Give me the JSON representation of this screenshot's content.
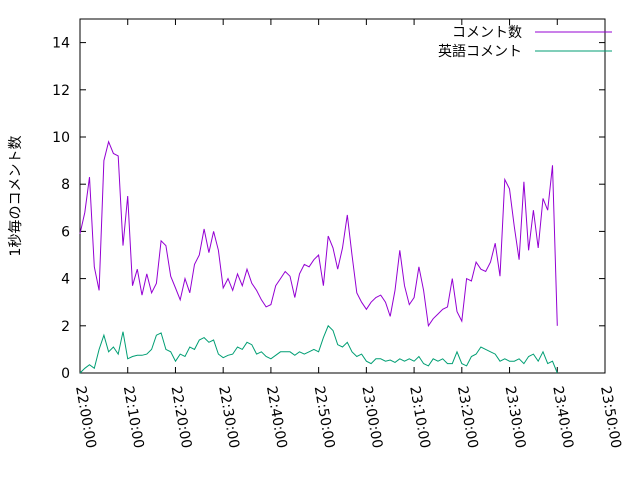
{
  "chart_data": {
    "type": "line",
    "ylabel": "1秒毎のコメント数",
    "x": [
      "22:00:00",
      "22:01:00",
      "22:02:00",
      "22:03:00",
      "22:04:00",
      "22:05:00",
      "22:06:00",
      "22:07:00",
      "22:08:00",
      "22:09:00",
      "22:10:00",
      "22:11:00",
      "22:12:00",
      "22:13:00",
      "22:14:00",
      "22:15:00",
      "22:16:00",
      "22:17:00",
      "22:18:00",
      "22:19:00",
      "22:20:00",
      "22:21:00",
      "22:22:00",
      "22:23:00",
      "22:24:00",
      "22:25:00",
      "22:26:00",
      "22:27:00",
      "22:28:00",
      "22:29:00",
      "22:30:00",
      "22:31:00",
      "22:32:00",
      "22:33:00",
      "22:34:00",
      "22:35:00",
      "22:36:00",
      "22:37:00",
      "22:38:00",
      "22:39:00",
      "22:40:00",
      "22:41:00",
      "22:42:00",
      "22:43:00",
      "22:44:00",
      "22:45:00",
      "22:46:00",
      "22:47:00",
      "22:48:00",
      "22:49:00",
      "22:50:00",
      "22:51:00",
      "22:52:00",
      "22:53:00",
      "22:54:00",
      "22:55:00",
      "22:56:00",
      "22:57:00",
      "22:58:00",
      "22:59:00",
      "23:00:00",
      "23:01:00",
      "23:02:00",
      "23:03:00",
      "23:04:00",
      "23:05:00",
      "23:06:00",
      "23:07:00",
      "23:08:00",
      "23:09:00",
      "23:10:00",
      "23:11:00",
      "23:12:00",
      "23:13:00",
      "23:14:00",
      "23:15:00",
      "23:16:00",
      "23:17:00",
      "23:18:00",
      "23:19:00",
      "23:20:00",
      "23:21:00",
      "23:22:00",
      "23:23:00",
      "23:24:00",
      "23:25:00",
      "23:26:00",
      "23:27:00",
      "23:28:00",
      "23:29:00",
      "23:30:00",
      "23:31:00",
      "23:32:00",
      "23:33:00",
      "23:34:00",
      "23:35:00",
      "23:36:00",
      "23:37:00",
      "23:38:00",
      "23:39:00",
      "23:40:00"
    ],
    "series": [
      {
        "name": "コメント数",
        "color": "#9400d3",
        "values": [
          5.9,
          6.8,
          8.3,
          4.5,
          3.5,
          9.0,
          9.8,
          9.3,
          9.2,
          5.4,
          7.5,
          3.7,
          4.4,
          3.3,
          4.2,
          3.4,
          3.8,
          5.6,
          5.4,
          4.1,
          3.6,
          3.1,
          4.0,
          3.4,
          4.6,
          5.0,
          6.1,
          5.1,
          6.0,
          5.2,
          3.6,
          4.0,
          3.5,
          4.2,
          3.7,
          4.4,
          3.8,
          3.5,
          3.1,
          2.8,
          2.9,
          3.7,
          4.0,
          4.3,
          4.1,
          3.2,
          4.2,
          4.6,
          4.5,
          4.8,
          5.0,
          3.7,
          5.8,
          5.3,
          4.4,
          5.3,
          6.7,
          5.0,
          3.4,
          3.0,
          2.7,
          3.0,
          3.2,
          3.3,
          3.0,
          2.4,
          3.5,
          5.2,
          3.7,
          2.9,
          3.2,
          4.5,
          3.5,
          2.0,
          2.3,
          2.5,
          2.7,
          2.8,
          4.0,
          2.6,
          2.2,
          4.0,
          3.9,
          4.7,
          4.4,
          4.3,
          4.7,
          5.5,
          4.1,
          8.2,
          7.8,
          6.2,
          4.8,
          8.1,
          5.2,
          6.9,
          5.3,
          7.4,
          6.9,
          8.8,
          2.0
        ]
      },
      {
        "name": "英語コメント",
        "color": "#009e73",
        "values": [
          0.0,
          0.2,
          0.35,
          0.2,
          1.0,
          1.6,
          0.9,
          1.1,
          0.8,
          1.75,
          0.6,
          0.7,
          0.75,
          0.75,
          0.8,
          1.0,
          1.6,
          1.7,
          1.0,
          0.9,
          0.5,
          0.8,
          0.7,
          1.1,
          1.0,
          1.4,
          1.5,
          1.3,
          1.4,
          0.8,
          0.65,
          0.75,
          0.8,
          1.1,
          1.0,
          1.3,
          1.2,
          0.8,
          0.9,
          0.7,
          0.6,
          0.75,
          0.9,
          0.9,
          0.9,
          0.75,
          0.9,
          0.8,
          0.9,
          1.0,
          0.9,
          1.5,
          2.0,
          1.8,
          1.2,
          1.1,
          1.3,
          0.9,
          0.7,
          0.8,
          0.5,
          0.4,
          0.6,
          0.6,
          0.5,
          0.55,
          0.45,
          0.6,
          0.5,
          0.6,
          0.5,
          0.7,
          0.4,
          0.3,
          0.6,
          0.5,
          0.6,
          0.4,
          0.4,
          0.9,
          0.4,
          0.3,
          0.7,
          0.8,
          1.1,
          1.0,
          0.9,
          0.8,
          0.5,
          0.6,
          0.5,
          0.5,
          0.6,
          0.4,
          0.7,
          0.8,
          0.5,
          0.9,
          0.4,
          0.5,
          0.0
        ]
      }
    ],
    "xlim": [
      "22:00:00",
      "23:50:00"
    ],
    "xticks": [
      "22:00:00",
      "22:10:00",
      "22:20:00",
      "22:30:00",
      "22:40:00",
      "22:50:00",
      "23:00:00",
      "23:10:00",
      "23:20:00",
      "23:30:00",
      "23:40:00",
      "23:50:00"
    ],
    "ylim": [
      0,
      15
    ],
    "yticks": [
      0,
      2,
      4,
      6,
      8,
      10,
      12,
      14
    ],
    "grid": false,
    "legend": "upper right"
  }
}
